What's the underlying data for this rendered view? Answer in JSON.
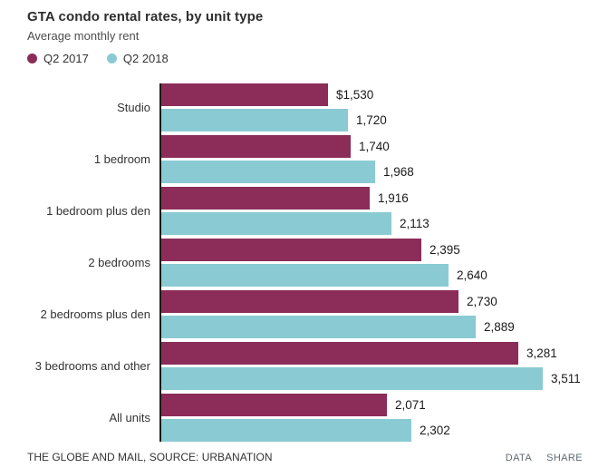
{
  "header": {
    "title": "GTA condo rental rates, by unit type",
    "subtitle": "Average monthly rent"
  },
  "chart_data": {
    "type": "bar",
    "orientation": "horizontal",
    "title": "GTA condo rental rates, by unit type",
    "subtitle": "Average monthly rent",
    "categories": [
      "Studio",
      "1 bedroom",
      "1 bedroom plus den",
      "2 bedrooms",
      "2 bedrooms plus den",
      "3 bedrooms and other",
      "All units"
    ],
    "series": [
      {
        "name": "Q2 2017",
        "color": "#8B2D58",
        "values": [
          1530,
          1740,
          1916,
          2395,
          2730,
          3281,
          2071
        ],
        "labels": [
          "$1,530",
          "1,740",
          "1,916",
          "2,395",
          "2,730",
          "3,281",
          "2,071"
        ]
      },
      {
        "name": "Q2 2018",
        "color": "#8ACBD3",
        "values": [
          1720,
          1968,
          2113,
          2640,
          2889,
          3511,
          2302
        ],
        "labels": [
          "1,720",
          "1,968",
          "2,113",
          "2,640",
          "2,889",
          "3,511",
          "2,302"
        ]
      }
    ],
    "xlim": [
      0,
      4000
    ],
    "grid": false,
    "legend_position": "top",
    "value_labels": "end-of-bar"
  },
  "footer": {
    "source": "THE GLOBE AND MAIL, SOURCE: URBANATION",
    "links": [
      {
        "label": "DATA"
      },
      {
        "label": "SHARE"
      }
    ]
  }
}
